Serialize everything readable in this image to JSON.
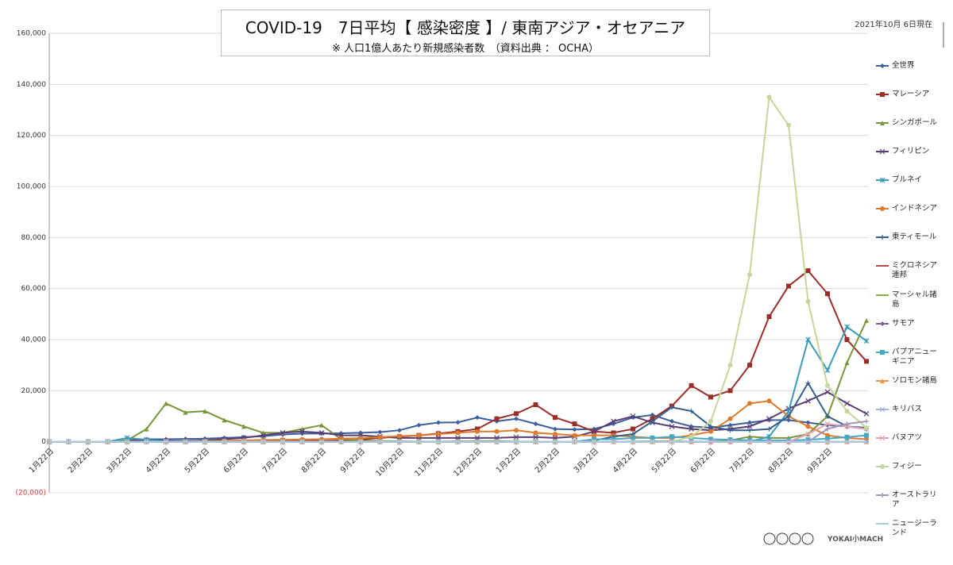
{
  "chart_data": {
    "type": "line",
    "title": "COVID-19　7日平均【 感染密度 】/ 東南アジア・オセアニア",
    "subtitle": "※ 人口1億人あたり新規感染者数　（資料出典 ： OCHA）",
    "annotation": "2021年10月 6日現在",
    "credit": "YOKAI小MACH",
    "categories": [
      "1月22日",
      null,
      "2月22日",
      null,
      "3月22日",
      null,
      "4月22日",
      null,
      "5月22日",
      null,
      "6月22日",
      null,
      "7月22日",
      null,
      "8月22日",
      null,
      "9月22日",
      null,
      "10月22日",
      null,
      "11月22日",
      null,
      "12月22日",
      null,
      "1月22日",
      null,
      "2月22日",
      null,
      "3月22日",
      null,
      "4月22日",
      null,
      "5月22日",
      null,
      "6月22日",
      null,
      "7月22日",
      null,
      "8月22日",
      null,
      "9月22日",
      null,
      null
    ],
    "ylim": [
      -20000,
      160000
    ],
    "yticks": [
      {
        "value": -20000,
        "label": "(20,000)"
      },
      0,
      {
        "value": 20000,
        "label": "20,000"
      },
      {
        "value": 40000,
        "label": "40,000"
      },
      {
        "value": 60000,
        "label": "60,000"
      },
      {
        "value": 80000,
        "label": "80,000"
      },
      {
        "value": 100000,
        "label": "100,000"
      },
      {
        "value": 120000,
        "label": "120,000"
      },
      {
        "value": 140000,
        "label": "140,000"
      },
      {
        "value": 160000,
        "label": "160,000"
      }
    ],
    "grid": true,
    "legend": "right",
    "series": [
      {
        "name": "全世界",
        "color": "#3a5f9a",
        "marker": "diamond",
        "values": [
          0,
          0,
          0,
          100,
          500,
          1000,
          1000,
          1100,
          1200,
          1500,
          1800,
          2200,
          2800,
          3200,
          3200,
          3300,
          3500,
          3800,
          4500,
          6500,
          7500,
          7600,
          9500,
          8000,
          9000,
          7000,
          5000,
          4800,
          5000,
          7000,
          9500,
          10500,
          8000,
          6000,
          5500,
          6500,
          7500,
          8500,
          8500,
          7500,
          6500,
          6000,
          5500
        ]
      },
      {
        "name": "マレーシア",
        "color": "#9b2d2a",
        "marker": "square",
        "values": [
          0,
          0,
          0,
          0,
          200,
          500,
          300,
          200,
          100,
          100,
          200,
          300,
          500,
          500,
          300,
          500,
          800,
          1500,
          2000,
          2500,
          3200,
          4000,
          5000,
          9000,
          11000,
          14500,
          9500,
          7000,
          4000,
          3500,
          5000,
          9000,
          14000,
          22000,
          17500,
          20000,
          30000,
          49000,
          61000,
          67000,
          58000,
          40000,
          31500
        ]
      },
      {
        "name": "シンガポール",
        "color": "#78953a",
        "marker": "triangle",
        "values": [
          0,
          0,
          0,
          100,
          500,
          5000,
          15000,
          11500,
          12000,
          8500,
          6000,
          3500,
          3500,
          5000,
          6500,
          1000,
          500,
          300,
          200,
          100,
          100,
          200,
          300,
          300,
          100,
          50,
          50,
          50,
          50,
          50,
          100,
          200,
          200,
          100,
          100,
          500,
          2000,
          1500,
          1500,
          3000,
          10000,
          31000,
          47500
        ]
      },
      {
        "name": "フィリピン",
        "color": "#5a3d73",
        "marker": "x",
        "values": [
          0,
          0,
          0,
          0,
          100,
          300,
          300,
          300,
          500,
          1000,
          1500,
          2500,
          3500,
          4000,
          3500,
          2500,
          2500,
          2000,
          1500,
          1500,
          1500,
          1500,
          1500,
          1500,
          1800,
          1800,
          1500,
          2000,
          4000,
          8000,
          10000,
          7500,
          6000,
          5000,
          4500,
          5000,
          6000,
          9000,
          13000,
          16000,
          19500,
          15000,
          11000
        ]
      },
      {
        "name": "ブルネイ",
        "color": "#3b9ab8",
        "marker": "star",
        "values": [
          0,
          0,
          0,
          0,
          1500,
          800,
          100,
          0,
          0,
          0,
          0,
          0,
          0,
          0,
          0,
          0,
          0,
          0,
          0,
          0,
          0,
          0,
          0,
          0,
          0,
          0,
          0,
          0,
          0,
          0,
          0,
          0,
          0,
          0,
          0,
          0,
          0,
          2000,
          12000,
          40000,
          28000,
          45000,
          39500
        ]
      },
      {
        "name": "インドネシア",
        "color": "#de7a2b",
        "marker": "circle",
        "values": [
          0,
          0,
          0,
          0,
          0,
          0,
          0,
          0,
          300,
          400,
          500,
          700,
          800,
          900,
          1000,
          1200,
          1400,
          1800,
          2200,
          2500,
          3000,
          3500,
          4000,
          4000,
          4500,
          3500,
          3000,
          2500,
          2500,
          2500,
          2000,
          1500,
          1500,
          2500,
          4000,
          9000,
          15000,
          16000,
          10000,
          6000,
          2500,
          1500,
          1000
        ]
      },
      {
        "name": "東ティモール",
        "color": "#355f8c",
        "marker": "plus",
        "values": [
          0,
          0,
          0,
          0,
          0,
          0,
          0,
          0,
          0,
          0,
          0,
          0,
          0,
          0,
          0,
          0,
          0,
          0,
          0,
          0,
          0,
          0,
          0,
          0,
          0,
          0,
          0,
          0,
          500,
          2000,
          3000,
          8000,
          13500,
          12000,
          6000,
          4500,
          4500,
          5000,
          10000,
          23000,
          10000,
          6000,
          5000
        ]
      },
      {
        "name": "ミクロネシア連邦",
        "color": "#b84a47",
        "marker": "none",
        "values": [
          0,
          0,
          0,
          0,
          0,
          0,
          0,
          0,
          0,
          0,
          0,
          0,
          0,
          0,
          0,
          0,
          0,
          0,
          0,
          0,
          0,
          0,
          0,
          0,
          0,
          0,
          0,
          0,
          0,
          0,
          0,
          0,
          0,
          0,
          0,
          0,
          0,
          0,
          0,
          0,
          0,
          0,
          0
        ]
      },
      {
        "name": "マーシャル諸島",
        "color": "#8fab4f",
        "marker": "none",
        "values": [
          0,
          0,
          0,
          0,
          0,
          0,
          0,
          0,
          0,
          0,
          0,
          0,
          0,
          0,
          0,
          0,
          0,
          0,
          0,
          0,
          0,
          0,
          0,
          0,
          0,
          0,
          0,
          0,
          0,
          0,
          0,
          0,
          0,
          0,
          0,
          0,
          0,
          0,
          0,
          0,
          0,
          0,
          0
        ]
      },
      {
        "name": "サモア",
        "color": "#7a5d9c",
        "marker": "diamond",
        "values": [
          0,
          0,
          0,
          0,
          0,
          0,
          0,
          0,
          0,
          0,
          0,
          0,
          0,
          0,
          0,
          0,
          0,
          0,
          0,
          0,
          0,
          0,
          0,
          0,
          0,
          0,
          0,
          0,
          0,
          0,
          0,
          0,
          0,
          0,
          0,
          0,
          0,
          0,
          0,
          0,
          0,
          0,
          0
        ]
      },
      {
        "name": "パプアニューギニア",
        "color": "#46a9c4",
        "marker": "square",
        "values": [
          0,
          0,
          0,
          0,
          0,
          0,
          0,
          0,
          0,
          0,
          0,
          0,
          0,
          0,
          0,
          0,
          0,
          0,
          0,
          0,
          0,
          0,
          0,
          0,
          0,
          0,
          0,
          0,
          1000,
          1000,
          1500,
          1500,
          2000,
          1500,
          1000,
          800,
          600,
          500,
          500,
          800,
          1200,
          1800,
          2500
        ]
      },
      {
        "name": "ソロモン諸島",
        "color": "#f49442",
        "marker": "triangle",
        "values": [
          0,
          0,
          0,
          0,
          0,
          0,
          0,
          0,
          0,
          0,
          0,
          0,
          0,
          0,
          0,
          0,
          0,
          0,
          0,
          0,
          0,
          0,
          0,
          0,
          0,
          0,
          0,
          0,
          0,
          0,
          0,
          0,
          0,
          0,
          0,
          0,
          0,
          0,
          0,
          0,
          0,
          0,
          0
        ]
      },
      {
        "name": "キリバス",
        "color": "#a4b5d6",
        "marker": "x",
        "values": [
          0,
          0,
          0,
          0,
          0,
          0,
          0,
          0,
          0,
          0,
          0,
          0,
          0,
          0,
          0,
          0,
          0,
          0,
          0,
          0,
          0,
          0,
          0,
          0,
          0,
          0,
          0,
          0,
          0,
          0,
          0,
          0,
          0,
          0,
          0,
          0,
          0,
          0,
          0,
          0,
          0,
          0,
          0
        ]
      },
      {
        "name": "バヌアツ",
        "color": "#e6a3ad",
        "marker": "x",
        "values": [
          0,
          0,
          0,
          0,
          0,
          0,
          0,
          0,
          0,
          0,
          0,
          0,
          0,
          0,
          0,
          0,
          0,
          0,
          0,
          0,
          0,
          0,
          0,
          0,
          0,
          0,
          0,
          0,
          0,
          0,
          0,
          0,
          0,
          0,
          0,
          0,
          0,
          0,
          0,
          3000,
          7000,
          6000,
          5000
        ]
      },
      {
        "name": "フィジー",
        "color": "#c3d69b",
        "marker": "circle",
        "values": [
          0,
          0,
          0,
          0,
          0,
          0,
          0,
          0,
          0,
          0,
          0,
          0,
          0,
          0,
          0,
          0,
          0,
          0,
          0,
          0,
          0,
          0,
          0,
          0,
          0,
          0,
          0,
          0,
          0,
          0,
          0,
          0,
          0,
          2000,
          8000,
          30000,
          65500,
          135000,
          124000,
          55000,
          22000,
          12000,
          5500
        ]
      },
      {
        "name": "オーストラリア",
        "color": "#9e93bb",
        "marker": "plus",
        "values": [
          0,
          0,
          0,
          0,
          0,
          0,
          0,
          0,
          0,
          0,
          0,
          0,
          0,
          0,
          0,
          0,
          0,
          0,
          0,
          0,
          0,
          0,
          0,
          0,
          0,
          0,
          0,
          0,
          0,
          0,
          0,
          0,
          0,
          0,
          0,
          0,
          0,
          0,
          0,
          0,
          5000,
          7000,
          8000
        ]
      },
      {
        "name": "ニュージーランド",
        "color": "#a9cbe6",
        "marker": "none",
        "values": [
          0,
          0,
          0,
          0,
          0,
          0,
          0,
          0,
          0,
          0,
          0,
          0,
          0,
          0,
          0,
          0,
          0,
          0,
          0,
          0,
          0,
          0,
          0,
          0,
          0,
          0,
          0,
          0,
          0,
          0,
          0,
          0,
          0,
          0,
          0,
          0,
          0,
          0,
          0,
          0,
          0,
          0,
          0
        ]
      }
    ]
  }
}
